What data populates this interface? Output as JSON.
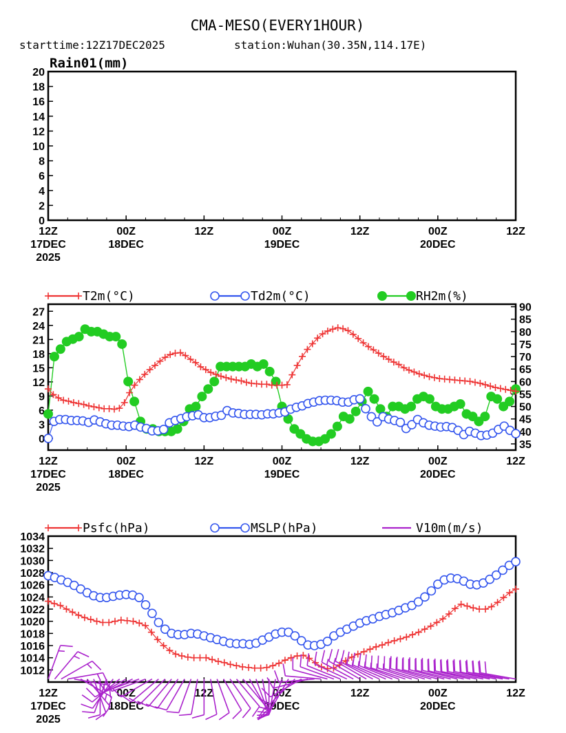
{
  "header": {
    "title": "CMA-MESO(EVERY1HOUR)",
    "starttime": "starttime:12Z17DEC2025",
    "station": "station:Wuhan(30.35N,114.17E)"
  },
  "time_axis": {
    "ticks": [
      {
        "hour": 0,
        "lines": [
          "12Z",
          "17DEC",
          "2025"
        ]
      },
      {
        "hour": 12,
        "lines": [
          "00Z",
          "18DEC"
        ]
      },
      {
        "hour": 24,
        "lines": [
          "12Z"
        ]
      },
      {
        "hour": 36,
        "lines": [
          "00Z",
          "19DEC"
        ]
      },
      {
        "hour": 48,
        "lines": [
          "12Z"
        ]
      },
      {
        "hour": 60,
        "lines": [
          "00Z",
          "20DEC"
        ]
      },
      {
        "hour": 72,
        "lines": [
          "12Z"
        ]
      }
    ]
  },
  "colors": {
    "t2m": "#ee3333",
    "td2m": "#3355ee",
    "rh2m": "#22cc22",
    "psfc": "#ee3333",
    "mslp": "#3355ee",
    "v10m": "#aa22cc"
  },
  "chart_data": [
    {
      "type": "bar",
      "title": "Rain01(mm)",
      "x_unit": "hours since 12Z17DEC2025",
      "ylim": [
        0,
        20
      ],
      "yticks": [
        0,
        2,
        4,
        6,
        8,
        10,
        12,
        14,
        16,
        18,
        20
      ],
      "values": []
    },
    {
      "type": "line",
      "title": "",
      "x_unit": "hours since 12Z17DEC2025",
      "left_axis": {
        "ylim": [
          -2.5,
          28.5
        ],
        "ticks": [
          0,
          3,
          6,
          9,
          12,
          15,
          18,
          21,
          24,
          27
        ]
      },
      "right_axis": {
        "ylim": [
          32.5,
          91
        ],
        "ticks": [
          35,
          40,
          45,
          50,
          55,
          60,
          65,
          70,
          75,
          80,
          85,
          90
        ]
      },
      "series": [
        {
          "name": "T2m(°C)",
          "axis": "left",
          "marker": "plus",
          "color_key": "t2m",
          "values": [
            10.5,
            9.3,
            8.6,
            8.1,
            7.9,
            7.6,
            7.4,
            7.2,
            6.9,
            6.7,
            6.5,
            6.3,
            6.3,
            6.2,
            6.4,
            7.6,
            9.7,
            11.3,
            12.5,
            13.6,
            14.6,
            15.5,
            16.4,
            17.2,
            17.8,
            18.1,
            18.2,
            17.6,
            16.8,
            16.1,
            15.2,
            14.6,
            14.0,
            13.6,
            13.2,
            12.9,
            12.6,
            12.4,
            12.2,
            11.9,
            11.7,
            11.6,
            11.5,
            11.5,
            11.3,
            11.3,
            11.3,
            11.4,
            13.5,
            15.5,
            17.4,
            18.9,
            20.1,
            21.3,
            22.2,
            22.8,
            23.2,
            23.5,
            23.3,
            22.9,
            22.1,
            21.2,
            20.3,
            19.5,
            18.8,
            18.1,
            17.4,
            16.8,
            16.2,
            15.7,
            15.0,
            14.5,
            14.1,
            13.7,
            13.4,
            13.1,
            12.9,
            12.7,
            12.6,
            12.5,
            12.4,
            12.3,
            12.2,
            12.1,
            11.9,
            11.7,
            11.4,
            11.1,
            10.8,
            10.6,
            10.4,
            10.2,
            10.0
          ]
        },
        {
          "name": "Td2m(°C)",
          "axis": "left",
          "marker": "open-circle",
          "color_key": "td2m",
          "values": [
            0.0,
            3.6,
            4.0,
            4.0,
            3.8,
            3.8,
            3.7,
            3.4,
            3.9,
            3.5,
            3.1,
            2.8,
            2.8,
            2.6,
            2.5,
            2.8,
            2.4,
            2.1,
            1.6,
            1.6,
            1.9,
            3.3,
            3.8,
            4.2,
            4.6,
            4.8,
            5.0,
            4.4,
            4.4,
            4.7,
            4.9,
            5.9,
            5.4,
            5.3,
            5.1,
            5.1,
            5.1,
            5.0,
            5.2,
            5.2,
            5.4,
            5.6,
            6.2,
            6.6,
            6.9,
            7.4,
            7.7,
            8.0,
            8.1,
            8.1,
            8.0,
            7.7,
            7.7,
            8.2,
            8.4,
            6.3,
            4.6,
            3.5,
            4.6,
            4.1,
            3.8,
            3.4,
            2.1,
            2.9,
            4.0,
            3.3,
            2.8,
            2.6,
            2.4,
            2.5,
            2.3,
            1.7,
            0.8,
            1.5,
            1.1,
            0.6,
            0.7,
            1.1,
            1.9,
            2.6,
            1.7,
            1.0
          ]
        },
        {
          "name": "RH2m(%)",
          "axis": "right",
          "marker": "filled-circle",
          "color_key": "rh2m",
          "values": [
            47,
            70,
            73,
            76,
            77,
            78,
            81,
            80,
            80,
            79,
            78,
            78,
            75,
            60,
            52,
            44,
            41,
            41,
            40,
            40,
            40,
            41,
            44,
            49,
            50,
            54,
            57,
            60,
            66,
            66,
            66,
            66,
            66,
            67,
            66,
            67,
            64,
            60,
            50,
            45,
            41,
            39,
            37,
            36,
            36,
            37,
            39,
            42,
            46,
            45,
            48,
            52,
            56,
            53,
            49,
            46,
            50,
            50,
            49,
            50,
            53,
            54,
            53,
            50,
            49,
            49,
            50,
            51,
            47,
            46,
            44,
            46,
            54,
            53,
            50,
            52,
            57
          ]
        }
      ]
    },
    {
      "type": "line",
      "title": "",
      "x_unit": "hours since 12Z17DEC2025",
      "ylim": [
        1010,
        1034
      ],
      "yticks": [
        1012,
        1014,
        1016,
        1018,
        1020,
        1022,
        1024,
        1026,
        1028,
        1030,
        1032,
        1034
      ],
      "series": [
        {
          "name": "Psfc(hPa)",
          "marker": "plus",
          "color_key": "psfc",
          "values": [
            1023.3,
            1022.9,
            1022.6,
            1022.0,
            1021.5,
            1021.0,
            1020.6,
            1020.3,
            1020.0,
            1019.8,
            1019.8,
            1020.0,
            1020.2,
            1020.1,
            1020.0,
            1019.7,
            1019.3,
            1018.2,
            1017.0,
            1016.0,
            1015.2,
            1014.6,
            1014.3,
            1014.1,
            1014.0,
            1014.0,
            1014.0,
            1013.7,
            1013.4,
            1013.2,
            1012.9,
            1012.7,
            1012.5,
            1012.4,
            1012.3,
            1012.3,
            1012.4,
            1012.7,
            1013.1,
            1013.6,
            1014.0,
            1014.3,
            1014.4,
            1013.9,
            1013.2,
            1012.5,
            1012.2,
            1012.3,
            1012.8,
            1013.5,
            1014.1,
            1014.6,
            1015.0,
            1015.4,
            1015.8,
            1016.1,
            1016.5,
            1016.8,
            1017.1,
            1017.4,
            1017.8,
            1018.2,
            1018.7,
            1019.2,
            1019.8,
            1020.4,
            1021.2,
            1022.1,
            1022.8,
            1022.5,
            1022.2,
            1022.0,
            1022.0,
            1022.4,
            1023.1,
            1023.9,
            1024.7,
            1025.3
          ]
        },
        {
          "name": "MSLP(hPa)",
          "marker": "open-circle",
          "color_key": "mslp",
          "values": [
            1027.5,
            1027.2,
            1026.8,
            1026.4,
            1025.9,
            1025.3,
            1024.7,
            1024.2,
            1023.9,
            1023.9,
            1024.1,
            1024.3,
            1024.4,
            1024.3,
            1023.9,
            1022.7,
            1021.3,
            1019.8,
            1018.7,
            1018.0,
            1017.8,
            1017.8,
            1018.0,
            1017.9,
            1017.6,
            1017.3,
            1017.0,
            1016.7,
            1016.4,
            1016.3,
            1016.3,
            1016.2,
            1016.4,
            1016.9,
            1017.4,
            1017.9,
            1018.2,
            1018.2,
            1017.6,
            1016.8,
            1016.1,
            1016.0,
            1016.2,
            1016.7,
            1017.6,
            1018.2,
            1018.7,
            1019.2,
            1019.7,
            1020.1,
            1020.4,
            1020.8,
            1021.1,
            1021.4,
            1021.8,
            1022.2,
            1022.6,
            1023.2,
            1024.0,
            1025.0,
            1026.1,
            1026.8,
            1027.1,
            1027.0,
            1026.6,
            1026.1,
            1026.0,
            1026.3,
            1026.9,
            1027.6,
            1028.4,
            1029.2,
            1029.8
          ]
        },
        {
          "name": "V10m(m/s)",
          "marker": "wind-barb",
          "color_key": "v10m",
          "direction_deg": [
            20,
            40,
            60,
            80,
            100,
            120,
            140,
            160,
            180,
            200,
            215,
            230,
            240,
            245,
            250,
            250,
            240,
            230,
            225,
            220,
            215,
            210,
            200,
            190,
            180,
            170,
            160,
            150,
            145,
            140,
            140,
            150,
            160,
            170,
            180,
            190,
            200,
            210,
            225,
            240,
            255,
            265,
            275,
            285,
            290,
            292,
            295,
            298,
            300,
            300,
            298,
            295,
            293,
            292,
            290,
            288,
            288,
            287,
            287,
            286,
            285,
            285,
            284,
            284,
            283,
            283,
            282,
            282,
            282,
            281,
            281,
            280,
            280
          ],
          "speed_ms": [
            6,
            6,
            7,
            7,
            6,
            6,
            5,
            5,
            5,
            5,
            4,
            4,
            4,
            5,
            5,
            5,
            4,
            4,
            4,
            4,
            4,
            3,
            3,
            3,
            3,
            3,
            3,
            3,
            3,
            3,
            3,
            3,
            3,
            3,
            3,
            4,
            4,
            4,
            4,
            4,
            4,
            4,
            4,
            4,
            4,
            5,
            5,
            6,
            6,
            6,
            6,
            7,
            7,
            7,
            7,
            7,
            7,
            8,
            8,
            8,
            8,
            8,
            8,
            8,
            8,
            8,
            8,
            8,
            8,
            8,
            8,
            8,
            8
          ]
        }
      ]
    }
  ],
  "legends": {
    "t2m": "T2m(°C)",
    "td2m": "Td2m(°C)",
    "rh2m": "RH2m(%)",
    "psfc": "Psfc(hPa)",
    "mslp": "MSLP(hPa)",
    "v10m": "V10m(m/s)"
  }
}
